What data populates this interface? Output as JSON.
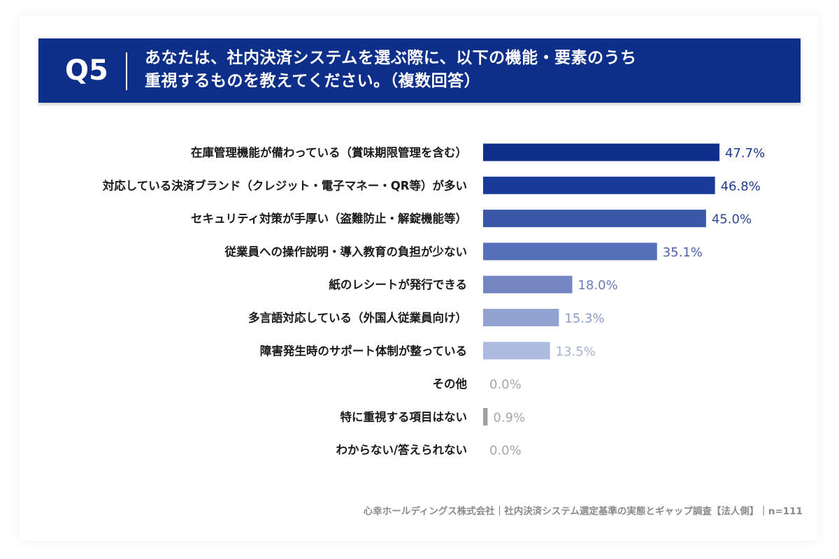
{
  "header": {
    "question_number": "Q5",
    "question_line1": "あなたは、社内決済システムを選ぶ際に、以下の機能・要素のうち",
    "question_line2": "重視するものを教えてください。（複数回答）",
    "header_color": "#0d2f8a"
  },
  "chart_data": {
    "type": "bar",
    "orientation": "horizontal",
    "unit": "%",
    "categories": [
      "在庫管理機能が備わっている（賞味期限管理を含む）",
      "対応している決済ブランド（クレジット・電子マネー・QR等）が多い",
      "セキュリティ対策が手厚い（盗難防止・解錠機能等）",
      "従業員への操作説明・導入教育の負担が少ない",
      "紙のレシートが発行できる",
      "多言語対応している（外国人従業員向け）",
      "障害発生時のサポート体制が整っている",
      "その他",
      "特に重視する項目はない",
      "わからない/答えられない"
    ],
    "values": [
      47.7,
      46.8,
      45.0,
      35.1,
      18.0,
      15.3,
      13.5,
      0.0,
      0.9,
      0.0
    ],
    "value_labels": [
      "47.7%",
      "46.8%",
      "45.0%",
      "35.1%",
      "18.0%",
      "15.3%",
      "13.5%",
      "0.0%",
      "0.9%",
      "0.0%"
    ],
    "bar_colors": [
      "#0d2f8a",
      "#193a96",
      "#3a57a8",
      "#5570b8",
      "#7487c2",
      "#93a3d1",
      "#aebbe0",
      "#a0a0a0",
      "#a0a0a0",
      "#a0a0a0"
    ],
    "label_colors": [
      "#1c3a8c",
      "#1c3a8c",
      "#2f4a9a",
      "#4a60aa",
      "#6a7cba",
      "#8c9acb",
      "#a5b1da",
      "#a6a6a6",
      "#a6a6a6",
      "#a6a6a6"
    ],
    "xlim": [
      0,
      50
    ],
    "grid": false,
    "legend": "none"
  },
  "footer": {
    "source": "心幸ホールディングス株式会社｜社内決済システム選定基準の実態とギャップ調査【法人側】｜n=111"
  }
}
